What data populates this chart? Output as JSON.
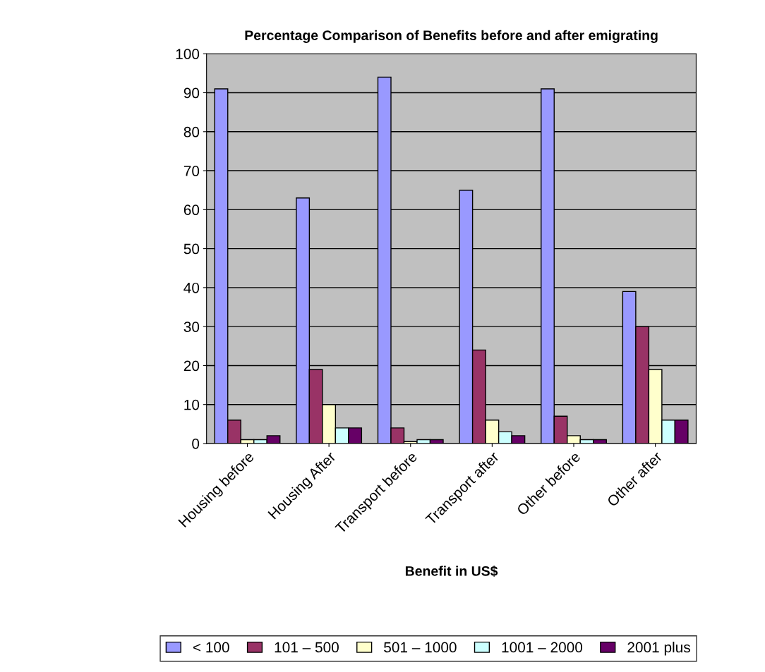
{
  "chart_data": {
    "type": "bar",
    "title": "Percentage Comparison of Benefits before and after emigrating",
    "xlabel": "Benefit in US$",
    "categories": [
      "Housing before",
      "Housing After",
      "Transport before",
      "Transport after",
      "Other before",
      "Other after"
    ],
    "series": [
      {
        "name": "< 100",
        "color": "#9999ff",
        "values": [
          91,
          63,
          94,
          65,
          91,
          39
        ]
      },
      {
        "name": "101 – 500",
        "color": "#993366",
        "values": [
          6,
          19,
          4,
          24,
          7,
          30
        ]
      },
      {
        "name": "501 – 1000",
        "color": "#ffffcc",
        "values": [
          1,
          10,
          0.5,
          6,
          2,
          19
        ]
      },
      {
        "name": "1001 – 2000",
        "color": "#ccffff",
        "values": [
          1,
          4,
          1,
          3,
          1,
          6
        ]
      },
      {
        "name": "2001 plus",
        "color": "#660066",
        "values": [
          2,
          4,
          1,
          2,
          1,
          6
        ]
      }
    ],
    "ylim": [
      0,
      100
    ],
    "yticks": [
      0,
      10,
      20,
      30,
      40,
      50,
      60,
      70,
      80,
      90,
      100
    ],
    "grid": "y",
    "legend": "bottom"
  }
}
